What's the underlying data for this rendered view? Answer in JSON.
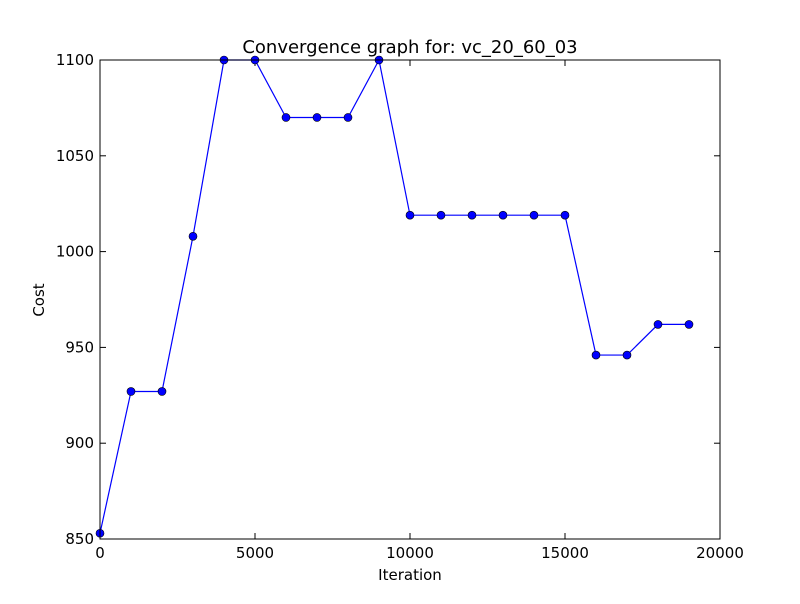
{
  "chart_data": {
    "type": "line",
    "title": "Convergence graph for: vc_20_60_03",
    "xlabel": "Iteration",
    "ylabel": "Cost",
    "xlim": [
      0,
      20000
    ],
    "ylim": [
      850,
      1100
    ],
    "x_ticks": [
      0,
      5000,
      10000,
      15000,
      20000
    ],
    "y_ticks": [
      850,
      900,
      950,
      1000,
      1050,
      1100
    ],
    "grid": false,
    "legend": "none",
    "series": [
      {
        "x": [
          0,
          1000,
          2000,
          3000,
          4000,
          5000,
          6000,
          7000,
          8000,
          9000,
          10000,
          11000,
          12000,
          13000,
          14000,
          15000,
          16000,
          17000,
          18000,
          19000
        ],
        "y": [
          853,
          927,
          927,
          1008,
          1100,
          1100,
          1070,
          1070,
          1070,
          1100,
          1019,
          1019,
          1019,
          1019,
          1019,
          1019,
          946,
          946,
          962,
          962
        ],
        "color": "#0000ff",
        "marker": "circle"
      }
    ]
  }
}
